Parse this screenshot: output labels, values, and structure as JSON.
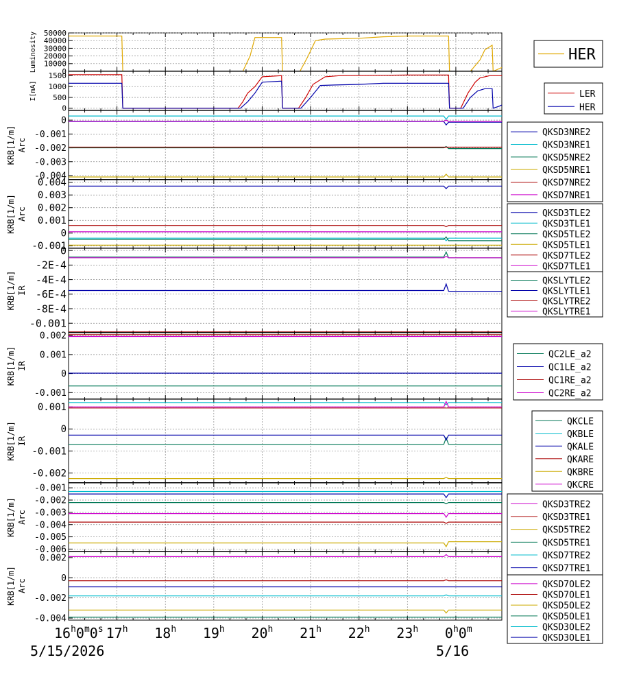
{
  "x_axis": {
    "hour_ticks": [
      "16",
      "17",
      "18",
      "19",
      "20",
      "21",
      "22",
      "23",
      "0"
    ],
    "first_tick_suffix": "0m0s",
    "last_tick_suffix": "0m",
    "start_date": "5/15/2026",
    "end_date": "5/16"
  },
  "chart_data": [
    {
      "type": "line",
      "ylabel": "Luminosity",
      "ylabel2": "",
      "ylim": [
        0,
        50000
      ],
      "ticks": [
        "50000",
        "40000",
        "30000",
        "20000",
        "10000",
        "0"
      ],
      "tick_values": [
        50000,
        40000,
        30000,
        20000,
        10000,
        0
      ],
      "series": [
        {
          "name": "HER",
          "color": "#e0a800",
          "x": [
            16.0,
            17.1,
            17.12,
            19.6,
            19.75,
            19.85,
            20.4,
            20.42,
            20.78,
            20.95,
            21.1,
            21.3,
            22.0,
            22.5,
            23.0,
            23.6,
            23.85,
            23.87,
            24.3,
            24.5,
            24.6,
            24.75,
            24.77,
            24.95
          ],
          "y": [
            46000,
            46000,
            0,
            0,
            20000,
            44000,
            44000,
            0,
            0,
            20000,
            40000,
            42000,
            43000,
            45000,
            46000,
            46000,
            46000,
            0,
            0,
            15000,
            28000,
            34000,
            0,
            5000
          ]
        }
      ],
      "legend_style": "big"
    },
    {
      "type": "line",
      "ylabel": "I[mA]",
      "ylabel2": "",
      "ylim": [
        -100,
        1700
      ],
      "ticks": [
        "1500",
        "1000",
        "500",
        "0"
      ],
      "tick_values": [
        1500,
        1000,
        500,
        0
      ],
      "series": [
        {
          "name": "LER",
          "color": "#cc0000",
          "x": [
            16.0,
            17.1,
            17.12,
            19.5,
            19.6,
            19.7,
            19.85,
            20.0,
            20.4,
            20.42,
            20.75,
            20.9,
            21.05,
            21.3,
            21.6,
            22.5,
            23.0,
            23.85,
            23.87,
            24.1,
            24.25,
            24.4,
            24.5,
            24.6,
            24.7,
            24.95
          ],
          "y": [
            1550,
            1550,
            0,
            0,
            300,
            700,
            1000,
            1450,
            1500,
            0,
            0,
            500,
            1100,
            1450,
            1500,
            1520,
            1530,
            1530,
            0,
            0,
            700,
            1200,
            1400,
            1450,
            1500,
            1500
          ]
        },
        {
          "name": "HER",
          "color": "#0000aa",
          "x": [
            16.0,
            17.1,
            17.12,
            19.55,
            19.7,
            19.85,
            20.0,
            20.4,
            20.42,
            20.8,
            21.0,
            21.2,
            21.5,
            22.0,
            22.5,
            23.0,
            23.85,
            23.87,
            24.15,
            24.3,
            24.45,
            24.6,
            24.75,
            24.77,
            24.9,
            24.95
          ],
          "y": [
            1150,
            1150,
            0,
            0,
            300,
            700,
            1200,
            1250,
            0,
            0,
            500,
            1050,
            1070,
            1100,
            1150,
            1150,
            1150,
            0,
            0,
            500,
            800,
            900,
            900,
            0,
            100,
            150
          ]
        }
      ],
      "legend_style": "box"
    },
    {
      "type": "line",
      "ylabel": "KRB[1/m]",
      "ylabel2": "Arc",
      "ylim": [
        -0.0043,
        0.0007
      ],
      "ticks": [
        "0",
        "-0.001",
        "-0.002",
        "-0.003",
        "-0.004"
      ],
      "tick_values": [
        0,
        -0.001,
        -0.002,
        -0.003,
        -0.004
      ],
      "series": [
        {
          "name": "QKSD3NRE2",
          "color": "#0000aa",
          "x": [
            16.0,
            23.75,
            23.8,
            23.85,
            24.95
          ],
          "y": [
            -0.0001,
            -0.0001,
            -0.00035,
            -0.00015,
            -0.00015
          ]
        },
        {
          "name": "QKSD3NRE1",
          "color": "#00bbcc",
          "x": [
            16.0,
            23.75,
            23.8,
            23.85,
            24.95
          ],
          "y": [
            0.0003,
            0.0003,
            5e-05,
            0.0003,
            0.0003
          ]
        },
        {
          "name": "QKSD5NRE2",
          "color": "#007755",
          "x": [
            16.0,
            23.75,
            23.8,
            23.85,
            24.95
          ],
          "y": [
            -0.002,
            -0.002,
            -0.0019,
            -0.00205,
            -0.00205
          ]
        },
        {
          "name": "QKSD5NRE1",
          "color": "#ccaa00",
          "x": [
            16.0,
            23.75,
            23.8,
            23.85,
            24.95
          ],
          "y": [
            -0.0041,
            -0.0041,
            -0.0039,
            -0.0041,
            -0.0041
          ]
        },
        {
          "name": "QKSD7NRE2",
          "color": "#aa0000",
          "x": [
            16.0,
            24.95
          ],
          "y": [
            -0.00195,
            -0.00195
          ]
        },
        {
          "name": "QKSD7NRE1",
          "color": "#cc00cc",
          "x": [
            16.0,
            23.75,
            23.8,
            23.85,
            24.95
          ],
          "y": [
            -8e-05,
            -8e-05,
            0.0,
            -0.0001,
            -0.0001
          ]
        }
      ],
      "legend_style": "box"
    },
    {
      "type": "line",
      "ylabel": "KRB[1/m]",
      "ylabel2": "Arc",
      "ylim": [
        -0.0012,
        0.0042
      ],
      "ticks": [
        "0.004",
        "0.003",
        "0.002",
        "0.001",
        "0",
        "-0.001"
      ],
      "tick_values": [
        0.004,
        0.003,
        0.002,
        0.001,
        0,
        -0.001
      ],
      "series": [
        {
          "name": "QKSD3TLE2",
          "color": "#0000aa",
          "x": [
            16.0,
            23.75,
            23.8,
            23.85,
            24.95
          ],
          "y": [
            0.0037,
            0.0037,
            0.0035,
            0.0037,
            0.0037
          ]
        },
        {
          "name": "QKSD3TLE1",
          "color": "#00bbcc",
          "x": [
            16.0,
            23.75,
            23.8,
            23.85,
            24.95
          ],
          "y": [
            -0.0004,
            -0.0004,
            -0.0006,
            -0.0004,
            -0.0004
          ]
        },
        {
          "name": "QKSD5TLE2",
          "color": "#007755",
          "x": [
            16.0,
            23.75,
            23.8,
            23.85,
            24.95
          ],
          "y": [
            -0.0005,
            -0.0005,
            -0.0003,
            -0.0006,
            -0.0006
          ]
        },
        {
          "name": "QKSD5TLE1",
          "color": "#ccaa00",
          "x": [
            16.0,
            24.95
          ],
          "y": [
            -0.00095,
            -0.00095
          ]
        },
        {
          "name": "QKSD7TLE2",
          "color": "#aa0000",
          "x": [
            16.0,
            23.75,
            23.8,
            23.85,
            24.95
          ],
          "y": [
            0.0006,
            0.0006,
            0.0005,
            0.0006,
            0.0006
          ]
        },
        {
          "name": "QKSD7TLE1",
          "color": "#cc00cc",
          "x": [
            16.0,
            24.95
          ],
          "y": [
            0.0001,
            0.0001
          ]
        }
      ],
      "legend_style": "box"
    },
    {
      "type": "line",
      "ylabel": "KRB[1/m]",
      "ylabel2": "IR",
      "ylim": [
        -0.00113,
        3e-05
      ],
      "ticks": [
        "0",
        "-2E-4",
        "-4E-4",
        "-6E-4",
        "-8E-4",
        "-0.001"
      ],
      "tick_values": [
        0,
        -0.0002,
        -0.0004,
        -0.0006,
        -0.0008,
        -0.001
      ],
      "series": [
        {
          "name": "QKSLYTLE2",
          "color": "#007755",
          "x": [
            16.0,
            23.75,
            23.8,
            23.85,
            24.95
          ],
          "y": [
            -9e-05,
            -9e-05,
            -2e-05,
            -0.0001,
            -0.0001
          ]
        },
        {
          "name": "QKSLYTLE1",
          "color": "#0000aa",
          "x": [
            16.0,
            23.75,
            23.8,
            23.85,
            24.95
          ],
          "y": [
            -0.00055,
            -0.00055,
            -0.00046,
            -0.00056,
            -0.00056
          ]
        },
        {
          "name": "QKSLYTRE2",
          "color": "#aa0000",
          "x": [
            16.0,
            24.95
          ],
          "y": [
            -0.00112,
            -0.00112
          ]
        },
        {
          "name": "QKSLYTRE1",
          "color": "#cc00cc",
          "x": [
            16.0,
            23.75,
            23.8,
            23.85,
            24.95
          ],
          "y": [
            -0.0001,
            -0.0001,
            -8e-05,
            -0.0001,
            -0.0001
          ]
        }
      ],
      "legend_style": "box"
    },
    {
      "type": "line",
      "ylabel": "KRB[1/m]",
      "ylabel2": "IR",
      "ylim": [
        -0.00135,
        0.00215
      ],
      "ticks": [
        "0.002",
        "0.001",
        "0",
        "-0.001"
      ],
      "tick_values": [
        0.002,
        0.001,
        0,
        -0.001
      ],
      "series": [
        {
          "name": "QC2LE_a2",
          "color": "#007755",
          "x": [
            16.0,
            24.95
          ],
          "y": [
            -0.00065,
            -0.00065
          ]
        },
        {
          "name": "QC1LE_a2",
          "color": "#0000aa",
          "x": [
            16.0,
            24.95
          ],
          "y": [
            2e-05,
            2e-05
          ]
        },
        {
          "name": "QC1RE_a2",
          "color": "#aa0000",
          "x": [
            16.0,
            24.95
          ],
          "y": [
            0.00205,
            0.00205
          ]
        },
        {
          "name": "QC2RE_a2",
          "color": "#cc00cc",
          "x": [
            16.0,
            24.95
          ],
          "y": [
            0.00195,
            0.00195
          ]
        }
      ],
      "legend_style": "box"
    },
    {
      "type": "line",
      "ylabel": "KRB[1/m]",
      "ylabel2": "IR",
      "ylim": [
        -0.00245,
        0.00135
      ],
      "ticks": [
        "0.001",
        "0",
        "-0.001",
        "-0.002"
      ],
      "tick_values": [
        0.001,
        0,
        -0.001,
        -0.002
      ],
      "series": [
        {
          "name": "QKCLE",
          "color": "#007755",
          "x": [
            16.0,
            23.75,
            23.8,
            23.85,
            24.95
          ],
          "y": [
            -0.0007,
            -0.0007,
            -0.0004,
            -0.0007,
            -0.0007
          ]
        },
        {
          "name": "QKBLE",
          "color": "#00bbcc",
          "x": [
            16.0,
            23.75,
            23.8,
            23.85,
            24.95
          ],
          "y": [
            0.0012,
            0.0012,
            0.0011,
            0.0012,
            0.0012
          ]
        },
        {
          "name": "QKALE",
          "color": "#0000aa",
          "x": [
            16.0,
            23.75,
            23.8,
            23.85,
            24.95
          ],
          "y": [
            -0.00028,
            -0.00028,
            -0.0005,
            -0.00028,
            -0.00028
          ]
        },
        {
          "name": "QKARE",
          "color": "#aa0000",
          "x": [
            16.0,
            24.95
          ],
          "y": [
            0.00095,
            0.00095
          ]
        },
        {
          "name": "QKBRE",
          "color": "#ccaa00",
          "x": [
            16.0,
            23.75,
            23.8,
            23.85,
            24.95
          ],
          "y": [
            -0.00225,
            -0.00225,
            -0.0022,
            -0.00225,
            -0.00225
          ]
        },
        {
          "name": "QKCRE",
          "color": "#cc00cc",
          "x": [
            16.0,
            23.75,
            23.8,
            23.85,
            24.95
          ],
          "y": [
            0.001,
            0.001,
            0.00125,
            0.001,
            0.001
          ]
        }
      ],
      "legend_style": "box"
    },
    {
      "type": "line",
      "ylabel": "KRB[1/m]",
      "ylabel2": "Arc",
      "ylim": [
        -0.0062,
        -0.0006
      ],
      "ticks": [
        "-0.001",
        "-0.002",
        "-0.003",
        "-0.004",
        "-0.005",
        "-0.006"
      ],
      "tick_values": [
        -0.001,
        -0.002,
        -0.003,
        -0.004,
        -0.005,
        -0.006
      ],
      "series": [
        {
          "name": "QKSD3TRE2",
          "color": "#cc00cc",
          "x": [
            16.0,
            23.75,
            23.8,
            23.85,
            24.95
          ],
          "y": [
            -0.0031,
            -0.0031,
            -0.0034,
            -0.0031,
            -0.0031
          ]
        },
        {
          "name": "QKSD3TRE1",
          "color": "#aa0000",
          "x": [
            16.0,
            23.75,
            23.8,
            23.85,
            24.95
          ],
          "y": [
            -0.0038,
            -0.0038,
            -0.0039,
            -0.0038,
            -0.0038
          ]
        },
        {
          "name": "QKSD5TRE2",
          "color": "#ccaa00",
          "x": [
            16.0,
            23.75,
            23.8,
            23.85,
            24.95
          ],
          "y": [
            -0.0055,
            -0.0055,
            -0.0058,
            -0.0054,
            -0.0054
          ]
        },
        {
          "name": "QKSD5TRE1",
          "color": "#007755",
          "x": [
            16.0,
            23.75,
            23.8,
            23.85,
            24.95
          ],
          "y": [
            -0.0022,
            -0.0022,
            -0.0023,
            -0.0022,
            -0.0022
          ]
        },
        {
          "name": "QKSD7TRE2",
          "color": "#00bbcc",
          "x": [
            16.0,
            24.95
          ],
          "y": [
            -0.0013,
            -0.0013
          ]
        },
        {
          "name": "QKSD7TRE1",
          "color": "#0000aa",
          "x": [
            16.0,
            23.75,
            23.8,
            23.85,
            24.95
          ],
          "y": [
            -0.0015,
            -0.0015,
            -0.0018,
            -0.0015,
            -0.0015
          ]
        }
      ],
      "legend_style": "box"
    },
    {
      "type": "line",
      "ylabel": "KRB[1/m]",
      "ylabel2": "Arc",
      "ylim": [
        -0.0042,
        0.0026
      ],
      "ticks": [
        "0.002",
        "0",
        "-0.002",
        "-0.004"
      ],
      "tick_values": [
        0.002,
        0,
        -0.002,
        -0.004
      ],
      "series": [
        {
          "name": "QKSD7OLE2",
          "color": "#cc00cc",
          "x": [
            16.0,
            23.75,
            23.8,
            23.85,
            24.95
          ],
          "y": [
            0.0021,
            0.0021,
            0.0023,
            0.0021,
            0.0021
          ]
        },
        {
          "name": "QKSD7OLE1",
          "color": "#aa0000",
          "x": [
            16.0,
            23.75,
            23.8,
            23.85,
            24.95
          ],
          "y": [
            -0.0003,
            -0.0003,
            -0.0002,
            -0.0003,
            -0.0003
          ]
        },
        {
          "name": "QKSD5OLE2",
          "color": "#ccaa00",
          "x": [
            16.0,
            23.75,
            23.8,
            23.85,
            24.95
          ],
          "y": [
            -0.0032,
            -0.0032,
            -0.0035,
            -0.0032,
            -0.0032
          ]
        },
        {
          "name": "QKSD5OLE1",
          "color": "#007755",
          "x": [
            16.0,
            24.95
          ],
          "y": [
            -0.0039,
            -0.0039
          ]
        },
        {
          "name": "QKSD3OLE2",
          "color": "#00bbcc",
          "x": [
            16.0,
            23.75,
            23.8,
            23.85,
            24.95
          ],
          "y": [
            -0.0018,
            -0.0018,
            -0.0017,
            -0.0018,
            -0.0018
          ]
        },
        {
          "name": "QKSD3OLE1",
          "color": "#0000aa",
          "x": [
            16.0,
            24.95
          ],
          "y": [
            -0.0009,
            -0.0009
          ]
        }
      ],
      "legend_style": "box"
    }
  ]
}
